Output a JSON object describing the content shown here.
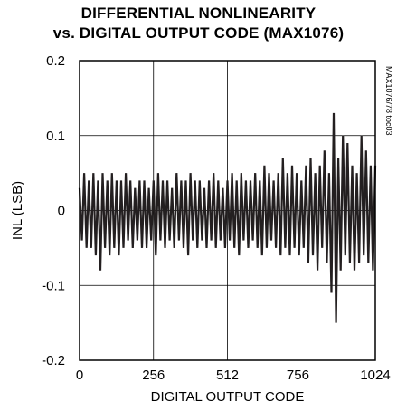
{
  "chart_data": {
    "type": "line",
    "title_line1": "DIFFERENTIAL NONLINEARITY",
    "title_line2": "vs. DIGITAL OUTPUT CODE (MAX1076)",
    "xlabel": "DIGITAL OUTPUT CODE",
    "ylabel": "INL (LSB)",
    "side_label": "MAX1076/78 toc03",
    "xlim": [
      0,
      1024
    ],
    "ylim": [
      -0.2,
      0.2
    ],
    "x_ticks": [
      0,
      256,
      512,
      756,
      1024
    ],
    "x_tick_labels": [
      "0",
      "256",
      "512",
      "756",
      "1024"
    ],
    "y_ticks": [
      0.2,
      0.1,
      0,
      -0.1,
      -0.2
    ],
    "y_tick_labels": [
      "0.2",
      "0.1",
      "0",
      "-0.1",
      "-0.2"
    ],
    "grid": true,
    "line_color": "#231f20",
    "series": [
      {
        "x": [
          0,
          8,
          16,
          24,
          32,
          40,
          48,
          56,
          64,
          72,
          80,
          88,
          96,
          104,
          112,
          120,
          128,
          136,
          144,
          152,
          160,
          168,
          176,
          184,
          192,
          200,
          208,
          216,
          224,
          232,
          240,
          248,
          256,
          264,
          272,
          280,
          288,
          296,
          304,
          312,
          320,
          328,
          336,
          344,
          352,
          360,
          368,
          376,
          384,
          392,
          400,
          408,
          416,
          424,
          432,
          440,
          448,
          456,
          464,
          472,
          480,
          488,
          496,
          504,
          512,
          520,
          528,
          536,
          544,
          552,
          560,
          568,
          576,
          584,
          592,
          600,
          608,
          616,
          624,
          632,
          640,
          648,
          656,
          664,
          672,
          680,
          688,
          696,
          704,
          712,
          720,
          728,
          736,
          744,
          752,
          760,
          768,
          776,
          784,
          792,
          800,
          808,
          816,
          824,
          832,
          840,
          848,
          856,
          864,
          872,
          880,
          888,
          896,
          904,
          912,
          920,
          928,
          936,
          944,
          952,
          960,
          968,
          976,
          984,
          992,
          1000,
          1008,
          1016,
          1024
        ],
        "y": [
          0.03,
          -0.04,
          0.05,
          -0.05,
          0.04,
          -0.05,
          0.05,
          -0.06,
          0.04,
          -0.08,
          0.05,
          -0.05,
          0.04,
          -0.06,
          0.05,
          -0.05,
          0.04,
          -0.06,
          0.04,
          -0.05,
          0.05,
          -0.04,
          0.04,
          -0.05,
          0.03,
          -0.04,
          0.04,
          -0.05,
          0.04,
          -0.05,
          0.03,
          -0.04,
          0.04,
          -0.06,
          0.05,
          -0.04,
          0.04,
          -0.05,
          0.04,
          -0.04,
          0.03,
          -0.05,
          0.05,
          -0.04,
          0.04,
          -0.05,
          0.04,
          -0.06,
          0.05,
          -0.04,
          0.04,
          -0.05,
          0.04,
          -0.04,
          0.03,
          -0.05,
          0.04,
          -0.04,
          0.05,
          -0.05,
          0.04,
          -0.04,
          0.03,
          -0.05,
          0.04,
          -0.04,
          0.05,
          -0.05,
          0.04,
          -0.06,
          0.05,
          -0.04,
          0.04,
          -0.05,
          0.04,
          -0.04,
          0.05,
          -0.05,
          0.04,
          -0.06,
          0.06,
          -0.05,
          0.05,
          -0.04,
          0.04,
          -0.05,
          0.05,
          -0.06,
          0.07,
          -0.05,
          0.05,
          -0.06,
          0.06,
          -0.05,
          0.05,
          -0.06,
          0.04,
          -0.05,
          0.06,
          -0.07,
          0.07,
          -0.06,
          0.05,
          -0.08,
          0.06,
          -0.05,
          0.08,
          -0.07,
          0.05,
          -0.11,
          0.13,
          -0.15,
          0.07,
          -0.08,
          0.1,
          -0.06,
          0.09,
          -0.07,
          0.06,
          -0.08,
          0.05,
          -0.07,
          0.1,
          -0.06,
          0.08,
          -0.07,
          0.06,
          -0.08,
          0.06
        ]
      }
    ]
  }
}
